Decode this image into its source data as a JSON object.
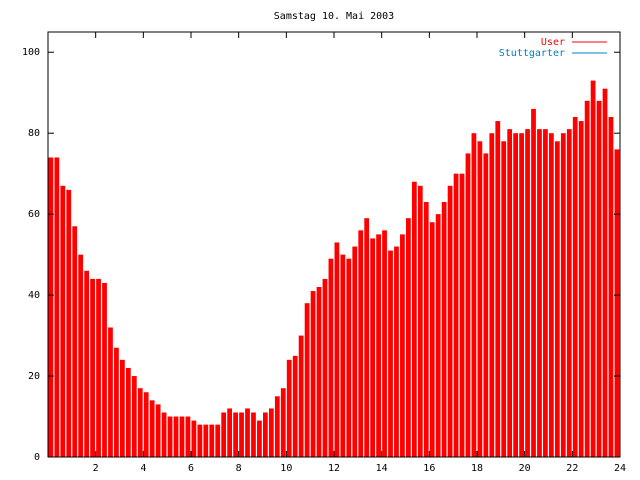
{
  "chart_data": {
    "type": "impulse",
    "title": "Samstag 10. Mai 2003",
    "x": [
      0,
      0.25,
      0.5,
      0.75,
      1,
      1.25,
      1.5,
      1.75,
      2,
      2.25,
      2.5,
      2.75,
      3,
      3.25,
      3.5,
      3.75,
      4,
      4.25,
      4.5,
      4.75,
      5,
      5.25,
      5.5,
      5.75,
      6,
      6.25,
      6.5,
      6.75,
      7,
      7.25,
      7.5,
      7.75,
      8,
      8.25,
      8.5,
      8.75,
      9,
      9.25,
      9.5,
      9.75,
      10,
      10.25,
      10.5,
      10.75,
      11,
      11.25,
      11.5,
      11.75,
      12,
      12.25,
      12.5,
      12.75,
      13,
      13.25,
      13.5,
      13.75,
      14,
      14.25,
      14.5,
      14.75,
      15,
      15.25,
      15.5,
      15.75,
      16,
      16.25,
      16.5,
      16.75,
      17,
      17.25,
      17.5,
      17.75,
      18,
      18.25,
      18.5,
      18.75,
      19,
      19.25,
      19.5,
      19.75,
      20,
      20.25,
      20.5,
      20.75,
      21,
      21.25,
      21.5,
      21.75,
      22,
      22.25,
      22.5,
      22.75,
      23,
      23.25,
      23.5,
      23.75
    ],
    "series": [
      {
        "name": "User",
        "color": "#ff0000",
        "values": [
          74,
          74,
          67,
          66,
          57,
          50,
          46,
          44,
          44,
          43,
          32,
          27,
          24,
          22,
          20,
          17,
          16,
          14,
          13,
          11,
          10,
          10,
          10,
          10,
          9,
          8,
          8,
          8,
          8,
          11,
          12,
          11,
          11,
          12,
          11,
          9,
          11,
          12,
          15,
          17,
          24,
          25,
          30,
          38,
          41,
          42,
          44,
          49,
          53,
          50,
          49,
          52,
          56,
          59,
          54,
          55,
          56,
          51,
          52,
          55,
          59,
          68,
          67,
          63,
          58,
          60,
          63,
          67,
          70,
          70,
          75,
          80,
          78,
          75,
          80,
          83,
          78,
          81,
          80,
          80,
          81,
          86,
          81,
          81,
          80,
          78,
          80,
          81,
          84,
          83,
          88,
          93,
          88,
          91,
          84,
          76
        ]
      },
      {
        "name": "Stuttgarter",
        "color": "#0080c0"
      }
    ],
    "xlim": [
      0,
      24
    ],
    "xticks": [
      2,
      4,
      6,
      8,
      10,
      12,
      14,
      16,
      18,
      20,
      22,
      24
    ],
    "ylim": [
      0,
      105
    ],
    "yticks": [
      0,
      20,
      40,
      60,
      80,
      100
    ]
  }
}
